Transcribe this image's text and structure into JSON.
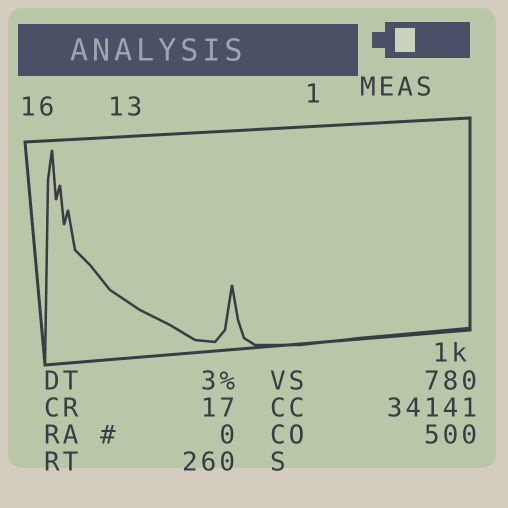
{
  "header": {
    "title": "ANALYSIS"
  },
  "status_row": {
    "left_a": "16",
    "left_b": "13",
    "count": "1",
    "mode": "MEAS"
  },
  "readout": {
    "top_right": "1k",
    "rows": [
      {
        "label": "DT",
        "value": "3%",
        "label2": "VS",
        "value2": "780"
      },
      {
        "label": "CR",
        "value": "17",
        "label2": "CC",
        "value2": "34141"
      },
      {
        "label": "RA #",
        "value": "0",
        "label2": "CO",
        "value2": "500"
      },
      {
        "label": "RT",
        "value": "260",
        "label2": "S",
        "value2": ""
      }
    ]
  }
}
